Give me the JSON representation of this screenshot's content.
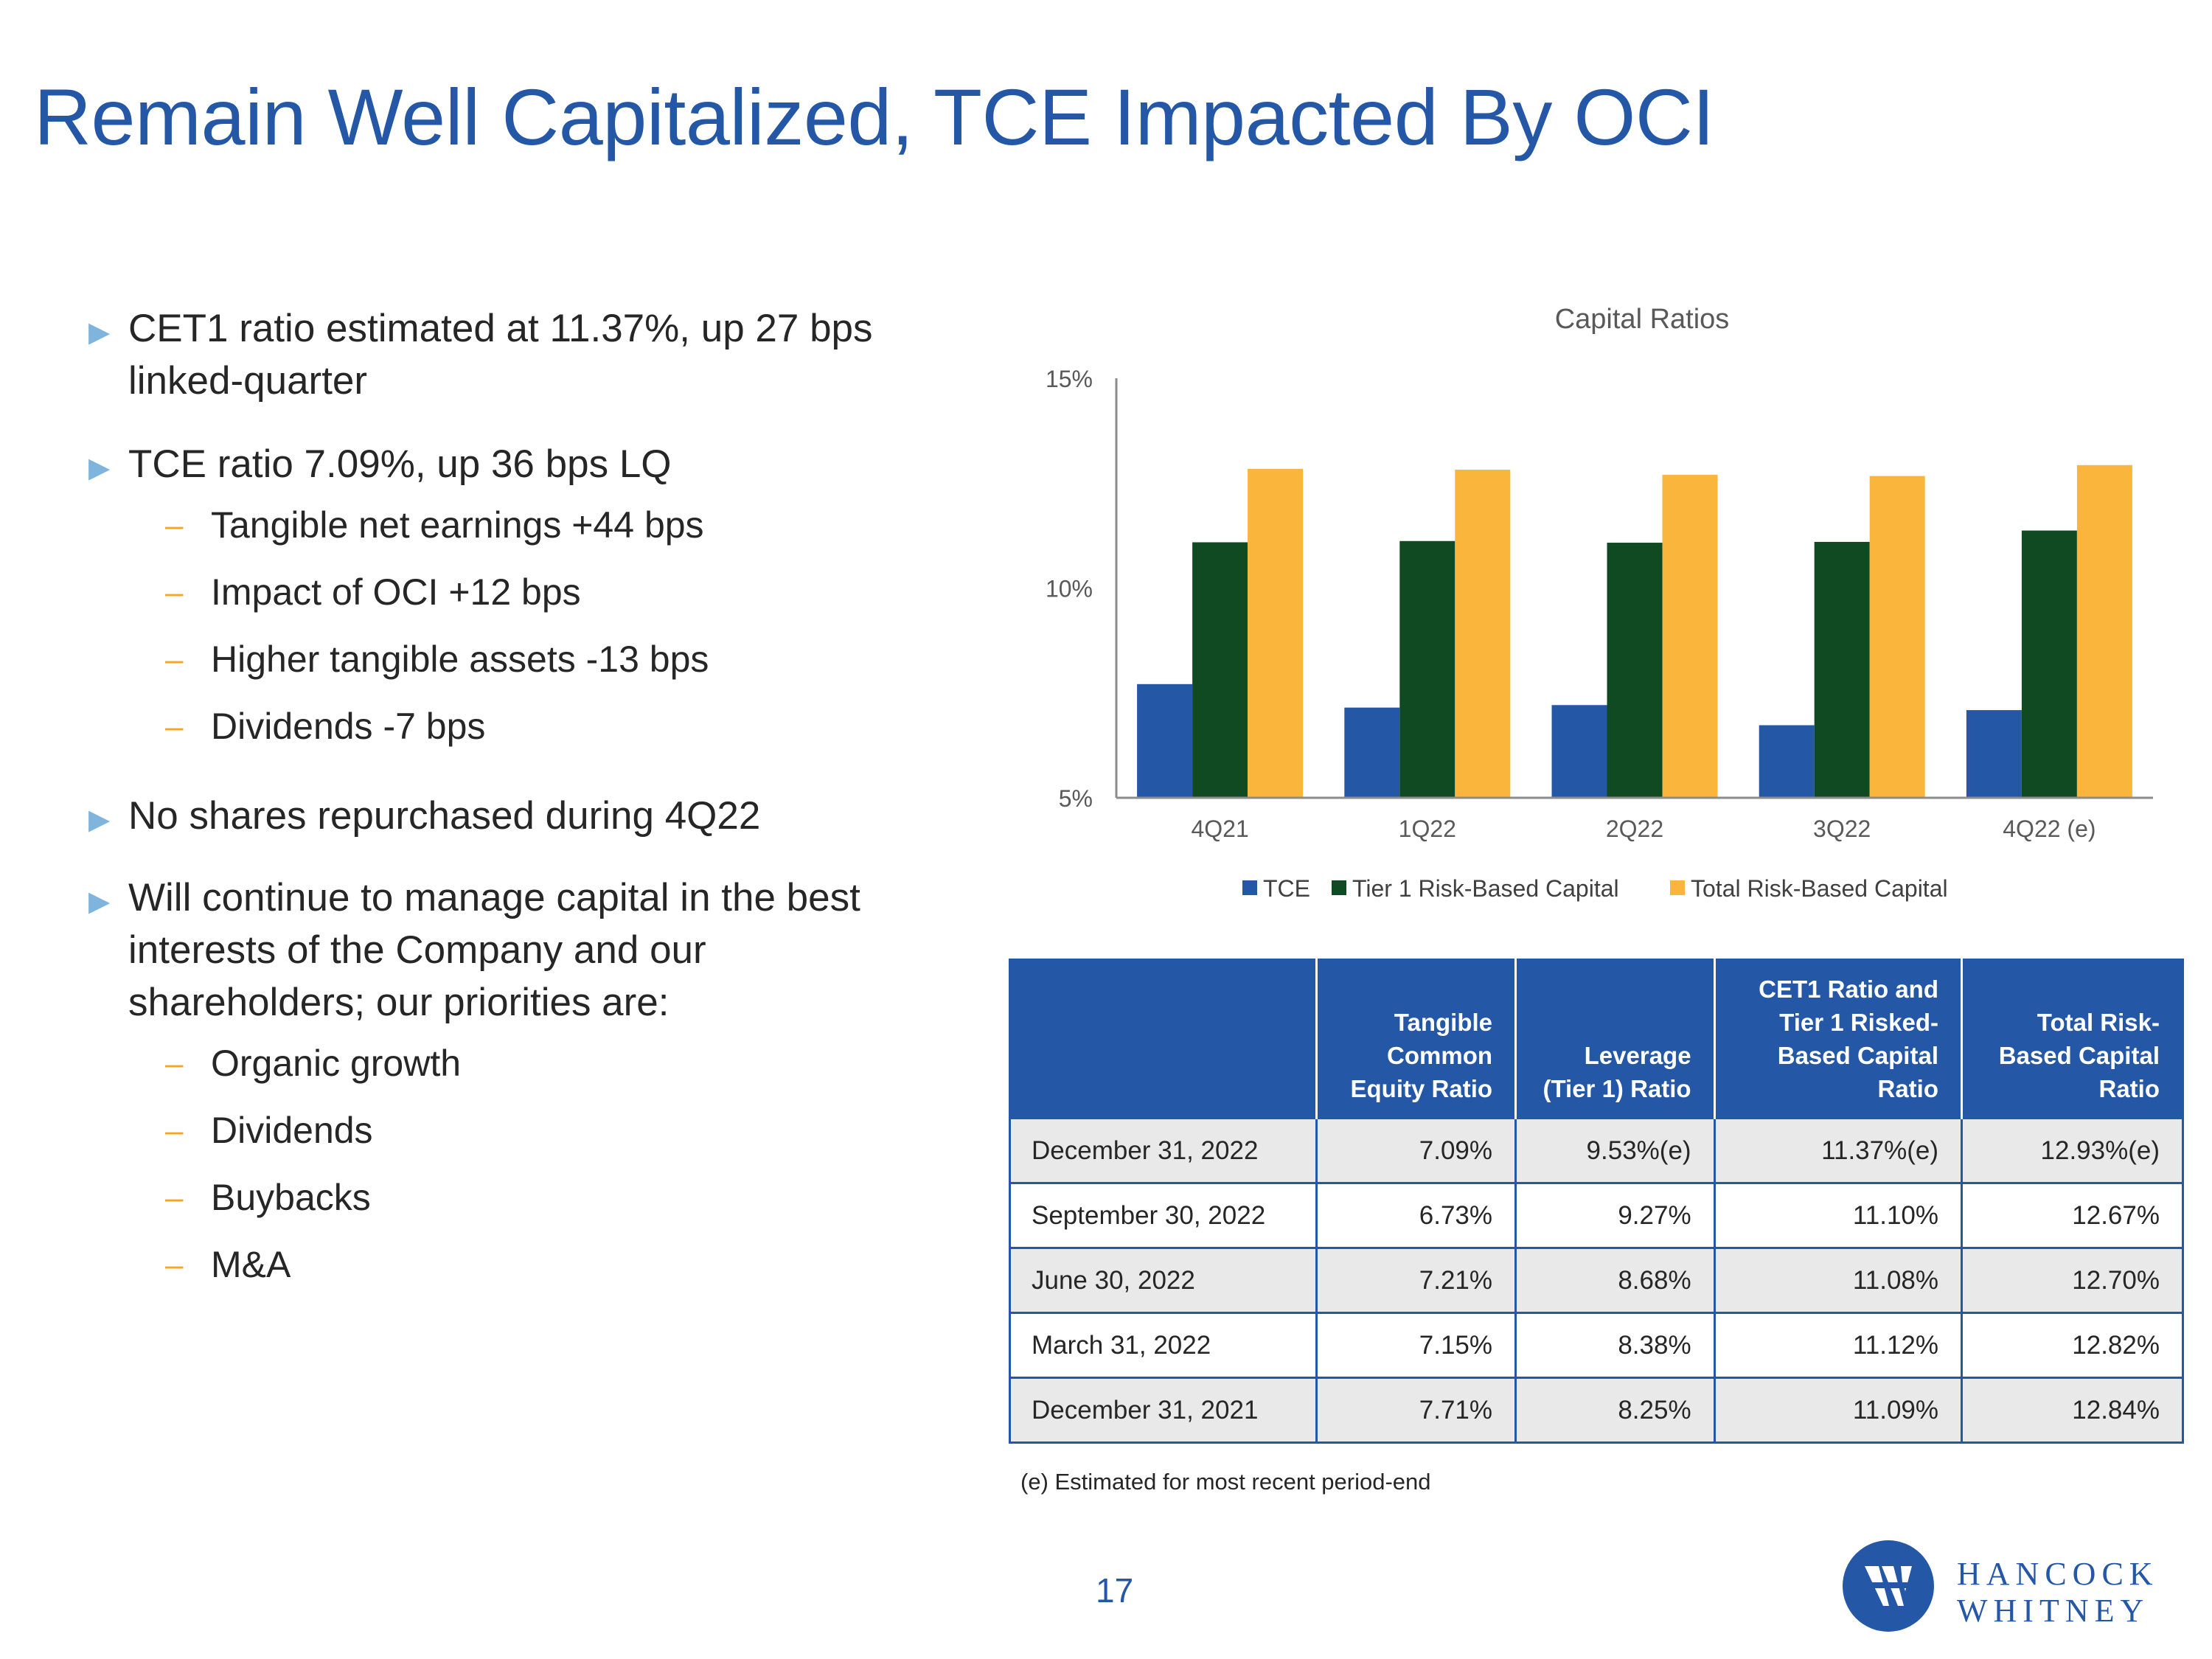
{
  "title": "Remain Well Capitalized, TCE Impacted By OCI",
  "bullets": [
    {
      "text": "CET1 ratio estimated at 11.37%, up 27 bps linked-quarter",
      "subs": []
    },
    {
      "text": "TCE ratio 7.09%, up 36 bps LQ",
      "subs": [
        "Tangible net earnings +44 bps",
        "Impact of OCI +12 bps",
        "Higher tangible assets -13 bps",
        "Dividends  -7 bps"
      ]
    },
    {
      "text": "No shares repurchased during 4Q22",
      "subs": []
    },
    {
      "text": "Will continue to manage capital in the best interests of the Company and our shareholders; our priorities are:",
      "subs": [
        "Organic growth",
        "Dividends",
        "Buybacks",
        "M&A"
      ]
    }
  ],
  "chart_data": {
    "type": "bar",
    "title": "Capital Ratios",
    "categories": [
      "4Q21",
      "1Q22",
      "2Q22",
      "3Q22",
      "4Q22 (e)"
    ],
    "series": [
      {
        "name": "TCE",
        "color": "#2557a7",
        "values": [
          7.71,
          7.15,
          7.21,
          6.73,
          7.09
        ]
      },
      {
        "name": "Tier 1 Risk-Based Capital",
        "color": "#0f4a23",
        "values": [
          11.09,
          11.12,
          11.08,
          11.1,
          11.37
        ]
      },
      {
        "name": "Total Risk-Based Capital",
        "color": "#f9b53c",
        "values": [
          12.84,
          12.82,
          12.7,
          12.67,
          12.93
        ]
      }
    ],
    "ylim": [
      5,
      15
    ],
    "yticks": [
      5,
      10,
      15
    ],
    "ytick_labels": [
      "5%",
      "10%",
      "15%"
    ],
    "xlabel": "",
    "ylabel": "",
    "legend_position": "bottom",
    "grid": false
  },
  "table": {
    "headers": [
      "",
      "Tangible Common Equity Ratio",
      "Leverage (Tier 1) Ratio",
      "CET1 Ratio and Tier 1 Risked-Based Capital Ratio",
      "Total Risk-Based Capital Ratio"
    ],
    "rows": [
      [
        "December 31, 2022",
        "7.09%",
        "9.53%(e)",
        "11.37%(e)",
        "12.93%(e)"
      ],
      [
        "September 30, 2022",
        "6.73%",
        "9.27%",
        "11.10%",
        "12.67%"
      ],
      [
        "June 30, 2022",
        "7.21%",
        "8.68%",
        "11.08%",
        "12.70%"
      ],
      [
        "March 31, 2022",
        "7.15%",
        "8.38%",
        "11.12%",
        "12.82%"
      ],
      [
        "December 31, 2021",
        "7.71%",
        "8.25%",
        "11.09%",
        "12.84%"
      ]
    ]
  },
  "footnote": "(e) Estimated for most recent period-end",
  "page_number": "17",
  "logo": {
    "line1": "HANCOCK",
    "line2": "WHITNEY",
    "brand_color": "#2557a7"
  }
}
